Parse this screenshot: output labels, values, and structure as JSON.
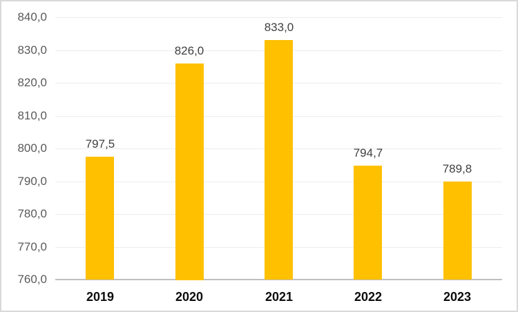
{
  "chart_data": {
    "type": "bar",
    "title": "",
    "xlabel": "",
    "ylabel": "",
    "categories": [
      "2019",
      "2020",
      "2021",
      "2022",
      "2023"
    ],
    "values": [
      797.5,
      826.0,
      833.0,
      794.7,
      789.8
    ],
    "value_labels": [
      "797,5",
      "826,0",
      "833,0",
      "794,7",
      "789,8"
    ],
    "ylim": [
      760,
      840
    ],
    "y_tick_step": 10,
    "y_tick_labels": [
      "760,0",
      "770,0",
      "780,0",
      "790,0",
      "800,0",
      "810,0",
      "820,0",
      "830,0",
      "840,0"
    ],
    "grid": true,
    "legend": "none",
    "decimal_separator": ","
  },
  "colors": {
    "bar": "#FFC000",
    "grid_line": "#ECECEC",
    "axis_line": "#BFBFBF",
    "y_tick_label": "#595959",
    "data_label": "#404040",
    "x_tick_label": "#0d0d0d",
    "frame_border": "#D9D9D9",
    "background": "#FFFFFF"
  }
}
